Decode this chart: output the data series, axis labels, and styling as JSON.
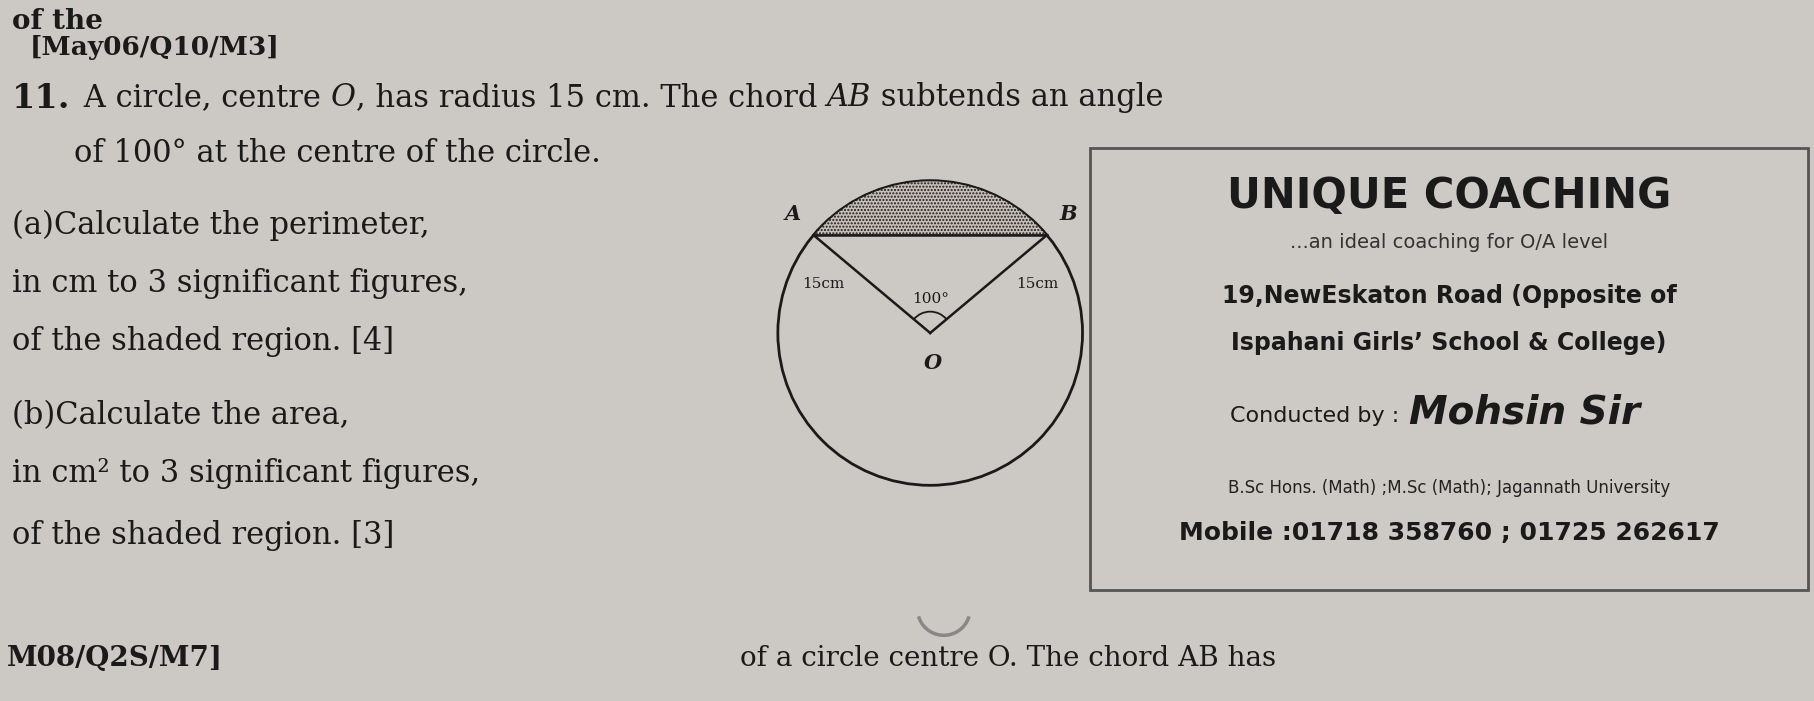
{
  "bg_color": "#ccc8c4",
  "title_text": "[May06/Q10/M3]",
  "q_number": "11.",
  "q_line1a": " A circle, centre ",
  "q_line1_O": "O",
  "q_line1b": ", has radius 15 cm. The chord ",
  "q_line1_AB": "AB",
  "q_line1c": " subtends an angle",
  "q_line2": "of 100° at the centre of the circle.",
  "part_a1": "(a)Calculate the perimeter,",
  "part_a2": "in cm to 3 significant figures,",
  "part_a3": "of the shaded region. [4]",
  "part_b1": "(b)Calculate the area,",
  "part_b2": "in cm² to 3 significant figures,",
  "part_b3": "of the shaded region. [3]",
  "bottom_left": "08/Q2S/M7]",
  "bottom_right": "of a circle centre O. The chord AB has",
  "radius_label": "15cm",
  "angle_label": "100°",
  "label_A": "A",
  "label_B": "B",
  "label_O": "O",
  "box_title": "UNIQUE COACHING",
  "box_sub": "...an ideal coaching for O/A level",
  "box_addr1": "19,NewEskaton Road (Opposite of",
  "box_addr2": "Ispahani Girls’ School & College)",
  "box_conducted": "Conducted by :",
  "box_mohsin": "Mohsin Sir",
  "box_bsc": "B.Sc Hons. (Math) ;M.Sc (Math); Jagannath University",
  "box_mobile": "Mobile :01718 358760 ; 01725 262617"
}
